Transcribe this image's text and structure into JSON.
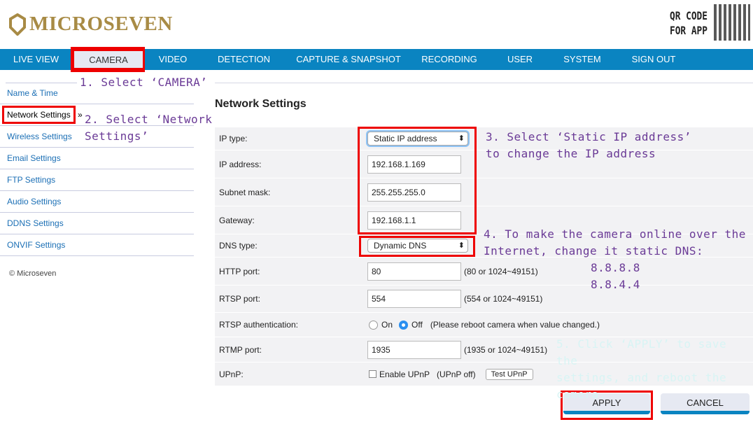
{
  "brand": {
    "name": "MICROSEVEN",
    "qr_label_1": "QR CODE",
    "qr_label_2": "FOR APP"
  },
  "nav": [
    "LIVE VIEW",
    "CAMERA",
    "VIDEO",
    "DETECTION",
    "CAPTURE & SNAPSHOT",
    "RECORDING",
    "USER",
    "SYSTEM",
    "SIGN OUT"
  ],
  "sidebar": [
    "Name & Time",
    "Network Settings",
    "Wireless Settings",
    "Email Settings",
    "FTP Settings",
    "Audio Settings",
    "DDNS Settings",
    "ONVIF Settings"
  ],
  "sidebar_arrow": "»",
  "copyright": "© Microseven",
  "page_title": "Network Settings",
  "form": {
    "ip_type": {
      "label": "IP type:",
      "value": "Static IP address"
    },
    "ip_address": {
      "label": "IP address:",
      "value": "192.168.1.169"
    },
    "subnet": {
      "label": "Subnet mask:",
      "value": "255.255.255.0"
    },
    "gateway": {
      "label": "Gateway:",
      "value": "192.168.1.1"
    },
    "dns_type": {
      "label": "DNS type:",
      "value": "Dynamic DNS"
    },
    "http_port": {
      "label": "HTTP port:",
      "value": "80",
      "hint": "(80 or 1024~49151)"
    },
    "rtsp_port": {
      "label": "RTSP port:",
      "value": "554",
      "hint": "(554 or 1024~49151)"
    },
    "rtsp_auth": {
      "label": "RTSP authentication:",
      "on": "On",
      "off": "Off",
      "selected": "Off",
      "hint": "(Please reboot camera when value changed.)"
    },
    "rtmp_port": {
      "label": "RTMP port:",
      "value": "1935",
      "hint": "(1935 or 1024~49151)"
    },
    "upnp": {
      "label": "UPnP:",
      "checkbox": "Enable UPnP",
      "checked": false,
      "status": "(UPnP off)",
      "test": "Test UPnP"
    }
  },
  "buttons": {
    "apply": "APPLY",
    "cancel": "CANCEL"
  },
  "notes": {
    "n1": "1. Select ‘CAMERA’",
    "n2a": "2. Select ‘Network",
    "n2b": "Settings’",
    "n3a": "3. Select ‘Static IP address’",
    "n3b": "to change the IP address",
    "n4a": "4. To make the camera online over the",
    "n4b": "Internet, change it static DNS:",
    "n4c": "8.8.8.8",
    "n4d": "8.8.4.4",
    "n5a": "5. Click ‘APPLY’ to save the",
    "n5b": "settings, and reboot the",
    "n5c": "camera."
  },
  "colors": {
    "nav": "#0a84c1",
    "brand": "#a88b45",
    "note": "#6a3a96",
    "highlight": "#e00000"
  }
}
